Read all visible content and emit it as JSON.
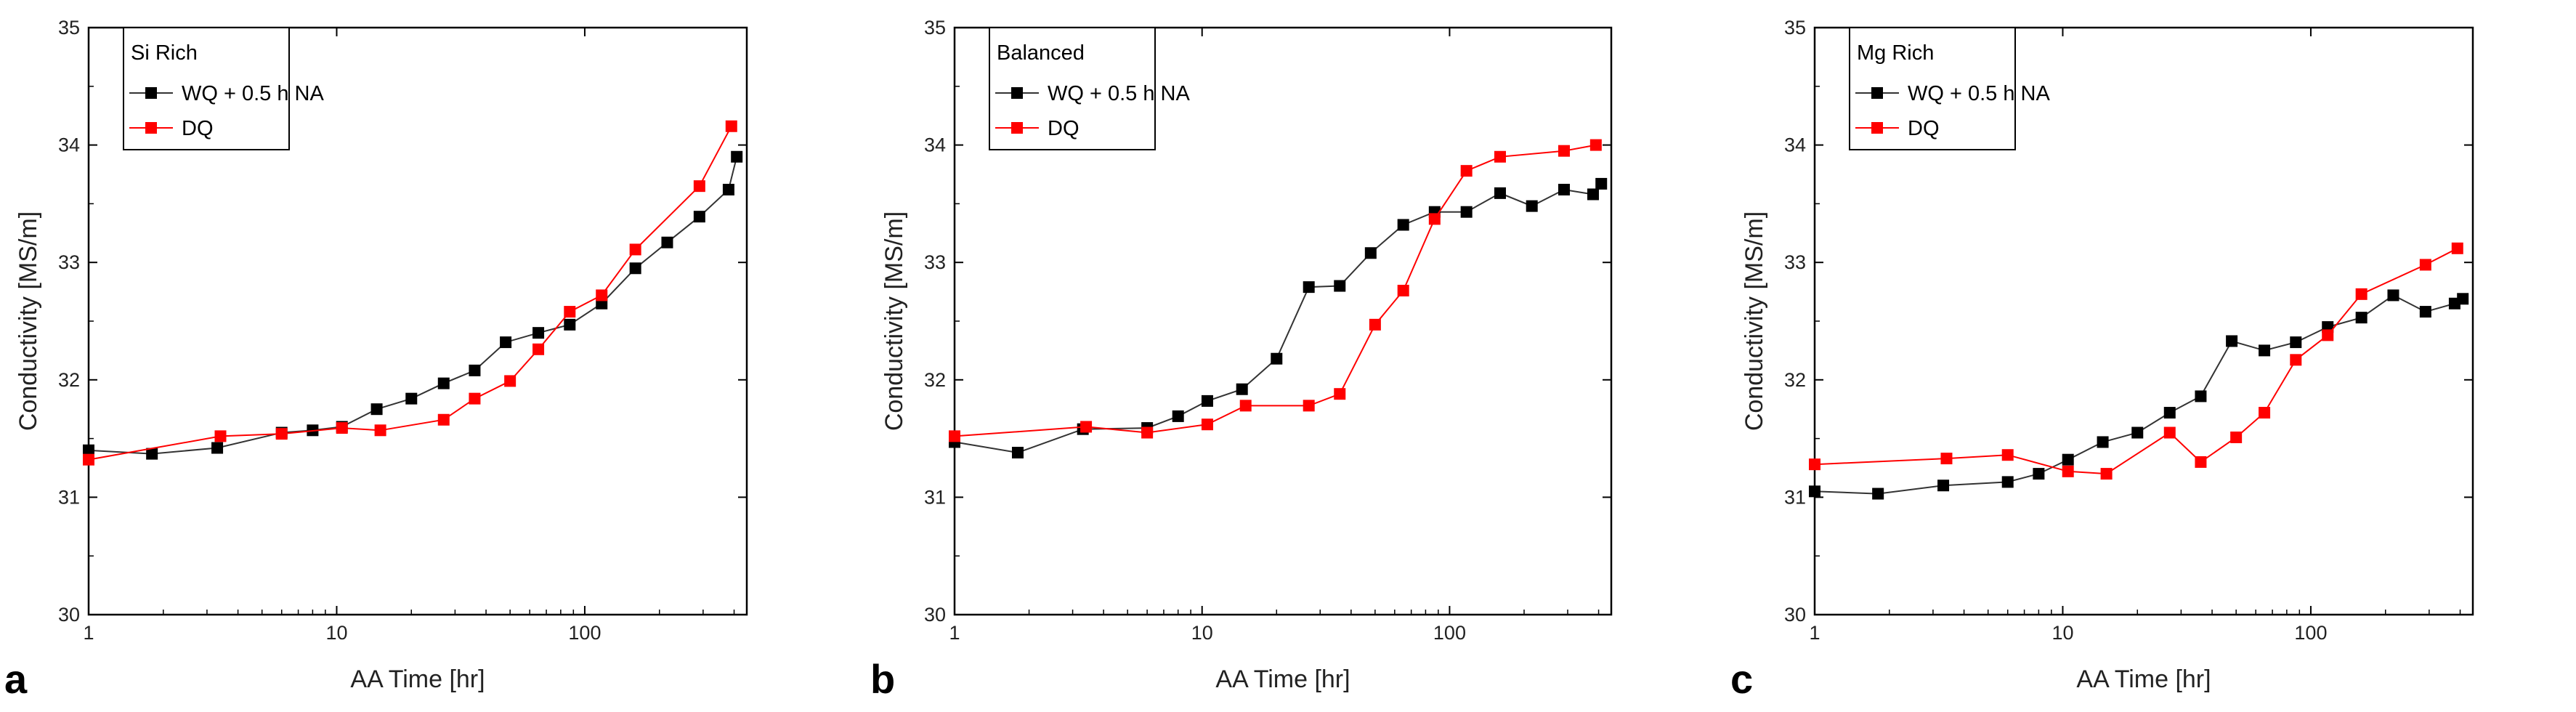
{
  "chart_data": [
    {
      "type": "line",
      "panel_label": "a",
      "title": "Si Rich",
      "xlabel": "AA Time [hr]",
      "ylabel": "Conductivity [MS/m]",
      "xscale": "log",
      "xlim": [
        1,
        450
      ],
      "ylim": [
        30,
        35
      ],
      "xticks": [
        1,
        10,
        100
      ],
      "xtick_labels": [
        "1",
        "10",
        "100"
      ],
      "yticks": [
        30,
        31,
        32,
        33,
        34,
        35
      ],
      "ytick_labels": [
        "30",
        "31",
        "32",
        "33",
        "34",
        "35"
      ],
      "legend_position": "top-left",
      "series": [
        {
          "name": "WQ + 0.5 h NA",
          "color": "#000000",
          "line_color": "#333333",
          "x": [
            1,
            1.8,
            3.3,
            6,
            8,
            10.5,
            14.5,
            20,
            27,
            36,
            48,
            65,
            87,
            117,
            160,
            215,
            290,
            380,
            410
          ],
          "y": [
            31.4,
            31.37,
            31.42,
            31.55,
            31.57,
            31.6,
            31.75,
            31.84,
            31.97,
            32.08,
            32.32,
            32.4,
            32.47,
            32.65,
            32.95,
            33.17,
            33.39,
            33.62,
            33.9
          ]
        },
        {
          "name": "DQ",
          "color": "#ff0000",
          "line_color": "#ff0000",
          "x": [
            1,
            3.4,
            6,
            10.5,
            15,
            27,
            36,
            50,
            65,
            87,
            117,
            160,
            290,
            390
          ],
          "y": [
            31.32,
            31.52,
            31.54,
            31.59,
            31.57,
            31.66,
            31.84,
            31.99,
            32.26,
            32.58,
            32.72,
            33.11,
            33.65,
            34.16
          ]
        }
      ]
    },
    {
      "type": "line",
      "panel_label": "b",
      "title": "Balanced",
      "xlabel": "AA Time [hr]",
      "ylabel": "Conductivity [MS/m]",
      "xscale": "log",
      "xlim": [
        1,
        450
      ],
      "ylim": [
        30,
        35
      ],
      "xticks": [
        1,
        10,
        100
      ],
      "xtick_labels": [
        "1",
        "10",
        "100"
      ],
      "yticks": [
        30,
        31,
        32,
        33,
        34,
        35
      ],
      "ytick_labels": [
        "30",
        "31",
        "32",
        "33",
        "34",
        "35"
      ],
      "legend_position": "top-left",
      "series": [
        {
          "name": "WQ + 0.5 h NA",
          "color": "#000000",
          "line_color": "#333333",
          "x": [
            1,
            1.8,
            3.3,
            6,
            8,
            10.5,
            14.5,
            20,
            27,
            36,
            48,
            65,
            87,
            117,
            160,
            215,
            290,
            380,
            410
          ],
          "y": [
            31.47,
            31.38,
            31.58,
            31.59,
            31.69,
            31.82,
            31.92,
            32.18,
            32.79,
            32.8,
            33.08,
            33.32,
            33.43,
            33.43,
            33.59,
            33.48,
            33.62,
            33.58,
            33.67
          ]
        },
        {
          "name": "DQ",
          "color": "#ff0000",
          "line_color": "#ff0000",
          "x": [
            1,
            3.4,
            6,
            10.5,
            15,
            27,
            36,
            50,
            65,
            87,
            117,
            160,
            290,
            390
          ],
          "y": [
            31.52,
            31.6,
            31.55,
            31.62,
            31.78,
            31.78,
            31.88,
            32.47,
            32.76,
            33.37,
            33.78,
            33.9,
            33.95,
            34.0
          ]
        }
      ]
    },
    {
      "type": "line",
      "panel_label": "c",
      "title": "Mg Rich",
      "xlabel": "AA Time [hr]",
      "ylabel": "Conductivity [MS/m]",
      "xscale": "log",
      "xlim": [
        1,
        450
      ],
      "ylim": [
        30,
        35
      ],
      "xticks": [
        1,
        10,
        100
      ],
      "xtick_labels": [
        "1",
        "10",
        "100"
      ],
      "yticks": [
        30,
        31,
        32,
        33,
        34,
        35
      ],
      "ytick_labels": [
        "30",
        "31",
        "32",
        "33",
        "34",
        "35"
      ],
      "legend_position": "top-left",
      "series": [
        {
          "name": "WQ + 0.5 h NA",
          "color": "#000000",
          "line_color": "#333333",
          "x": [
            1,
            1.8,
            3.3,
            6,
            8,
            10.5,
            14.5,
            20,
            27,
            36,
            48,
            65,
            87,
            117,
            160,
            215,
            290,
            380,
            410
          ],
          "y": [
            31.05,
            31.03,
            31.1,
            31.13,
            31.2,
            31.32,
            31.47,
            31.55,
            31.72,
            31.86,
            32.33,
            32.25,
            32.32,
            32.45,
            32.53,
            32.72,
            32.58,
            32.65,
            32.69
          ]
        },
        {
          "name": "DQ",
          "color": "#ff0000",
          "line_color": "#ff0000",
          "x": [
            1,
            3.4,
            6,
            10.5,
            15,
            27,
            36,
            50,
            65,
            87,
            117,
            160,
            290,
            390
          ],
          "y": [
            31.28,
            31.33,
            31.36,
            31.22,
            31.2,
            31.55,
            31.3,
            31.51,
            31.72,
            32.17,
            32.38,
            32.73,
            32.98,
            33.12
          ]
        }
      ]
    }
  ]
}
